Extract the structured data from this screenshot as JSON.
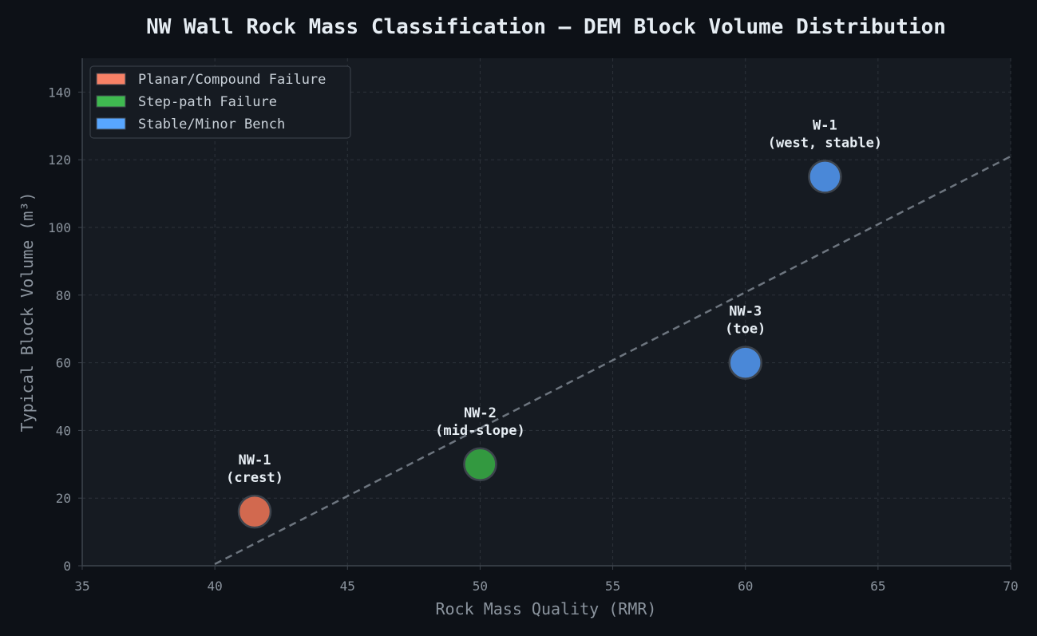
{
  "chart_data": {
    "type": "scatter",
    "title": "NW Wall Rock Mass Classification — DEM Block Volume Distribution",
    "xlabel": "Rock Mass Quality (RMR)",
    "ylabel": "Typical Block Volume (m³)",
    "xlim": [
      35,
      70
    ],
    "ylim": [
      0,
      150
    ],
    "x_ticks": [
      35,
      40,
      45,
      50,
      55,
      60,
      65,
      70
    ],
    "y_ticks": [
      0,
      20,
      40,
      60,
      80,
      100,
      120,
      140
    ],
    "grid": true,
    "legend_position": "top-left",
    "legend": [
      {
        "label": "Planar/Compound Failure",
        "color": "#f78166"
      },
      {
        "label": "Step-path Failure",
        "color": "#3fb950"
      },
      {
        "label": "Stable/Minor Bench",
        "color": "#58a6ff"
      }
    ],
    "points": [
      {
        "x": 41.5,
        "y": 16,
        "label_line1": "NW-1",
        "label_line2": "(crest)",
        "color": "#d2694f"
      },
      {
        "x": 50,
        "y": 30,
        "label_line1": "NW-2",
        "label_line2": "(mid-slope)",
        "color": "#339940"
      },
      {
        "x": 60,
        "y": 60,
        "label_line1": "NW-3",
        "label_line2": "(toe)",
        "color": "#4a88d8"
      },
      {
        "x": 63,
        "y": 115,
        "label_line1": "W-1",
        "label_line2": "(west, stable)",
        "color": "#4a88d8"
      }
    ],
    "trend_line": {
      "x": [
        40,
        70
      ],
      "y": [
        0.5,
        121
      ],
      "style": "dashed",
      "color": "#8b949e"
    }
  }
}
